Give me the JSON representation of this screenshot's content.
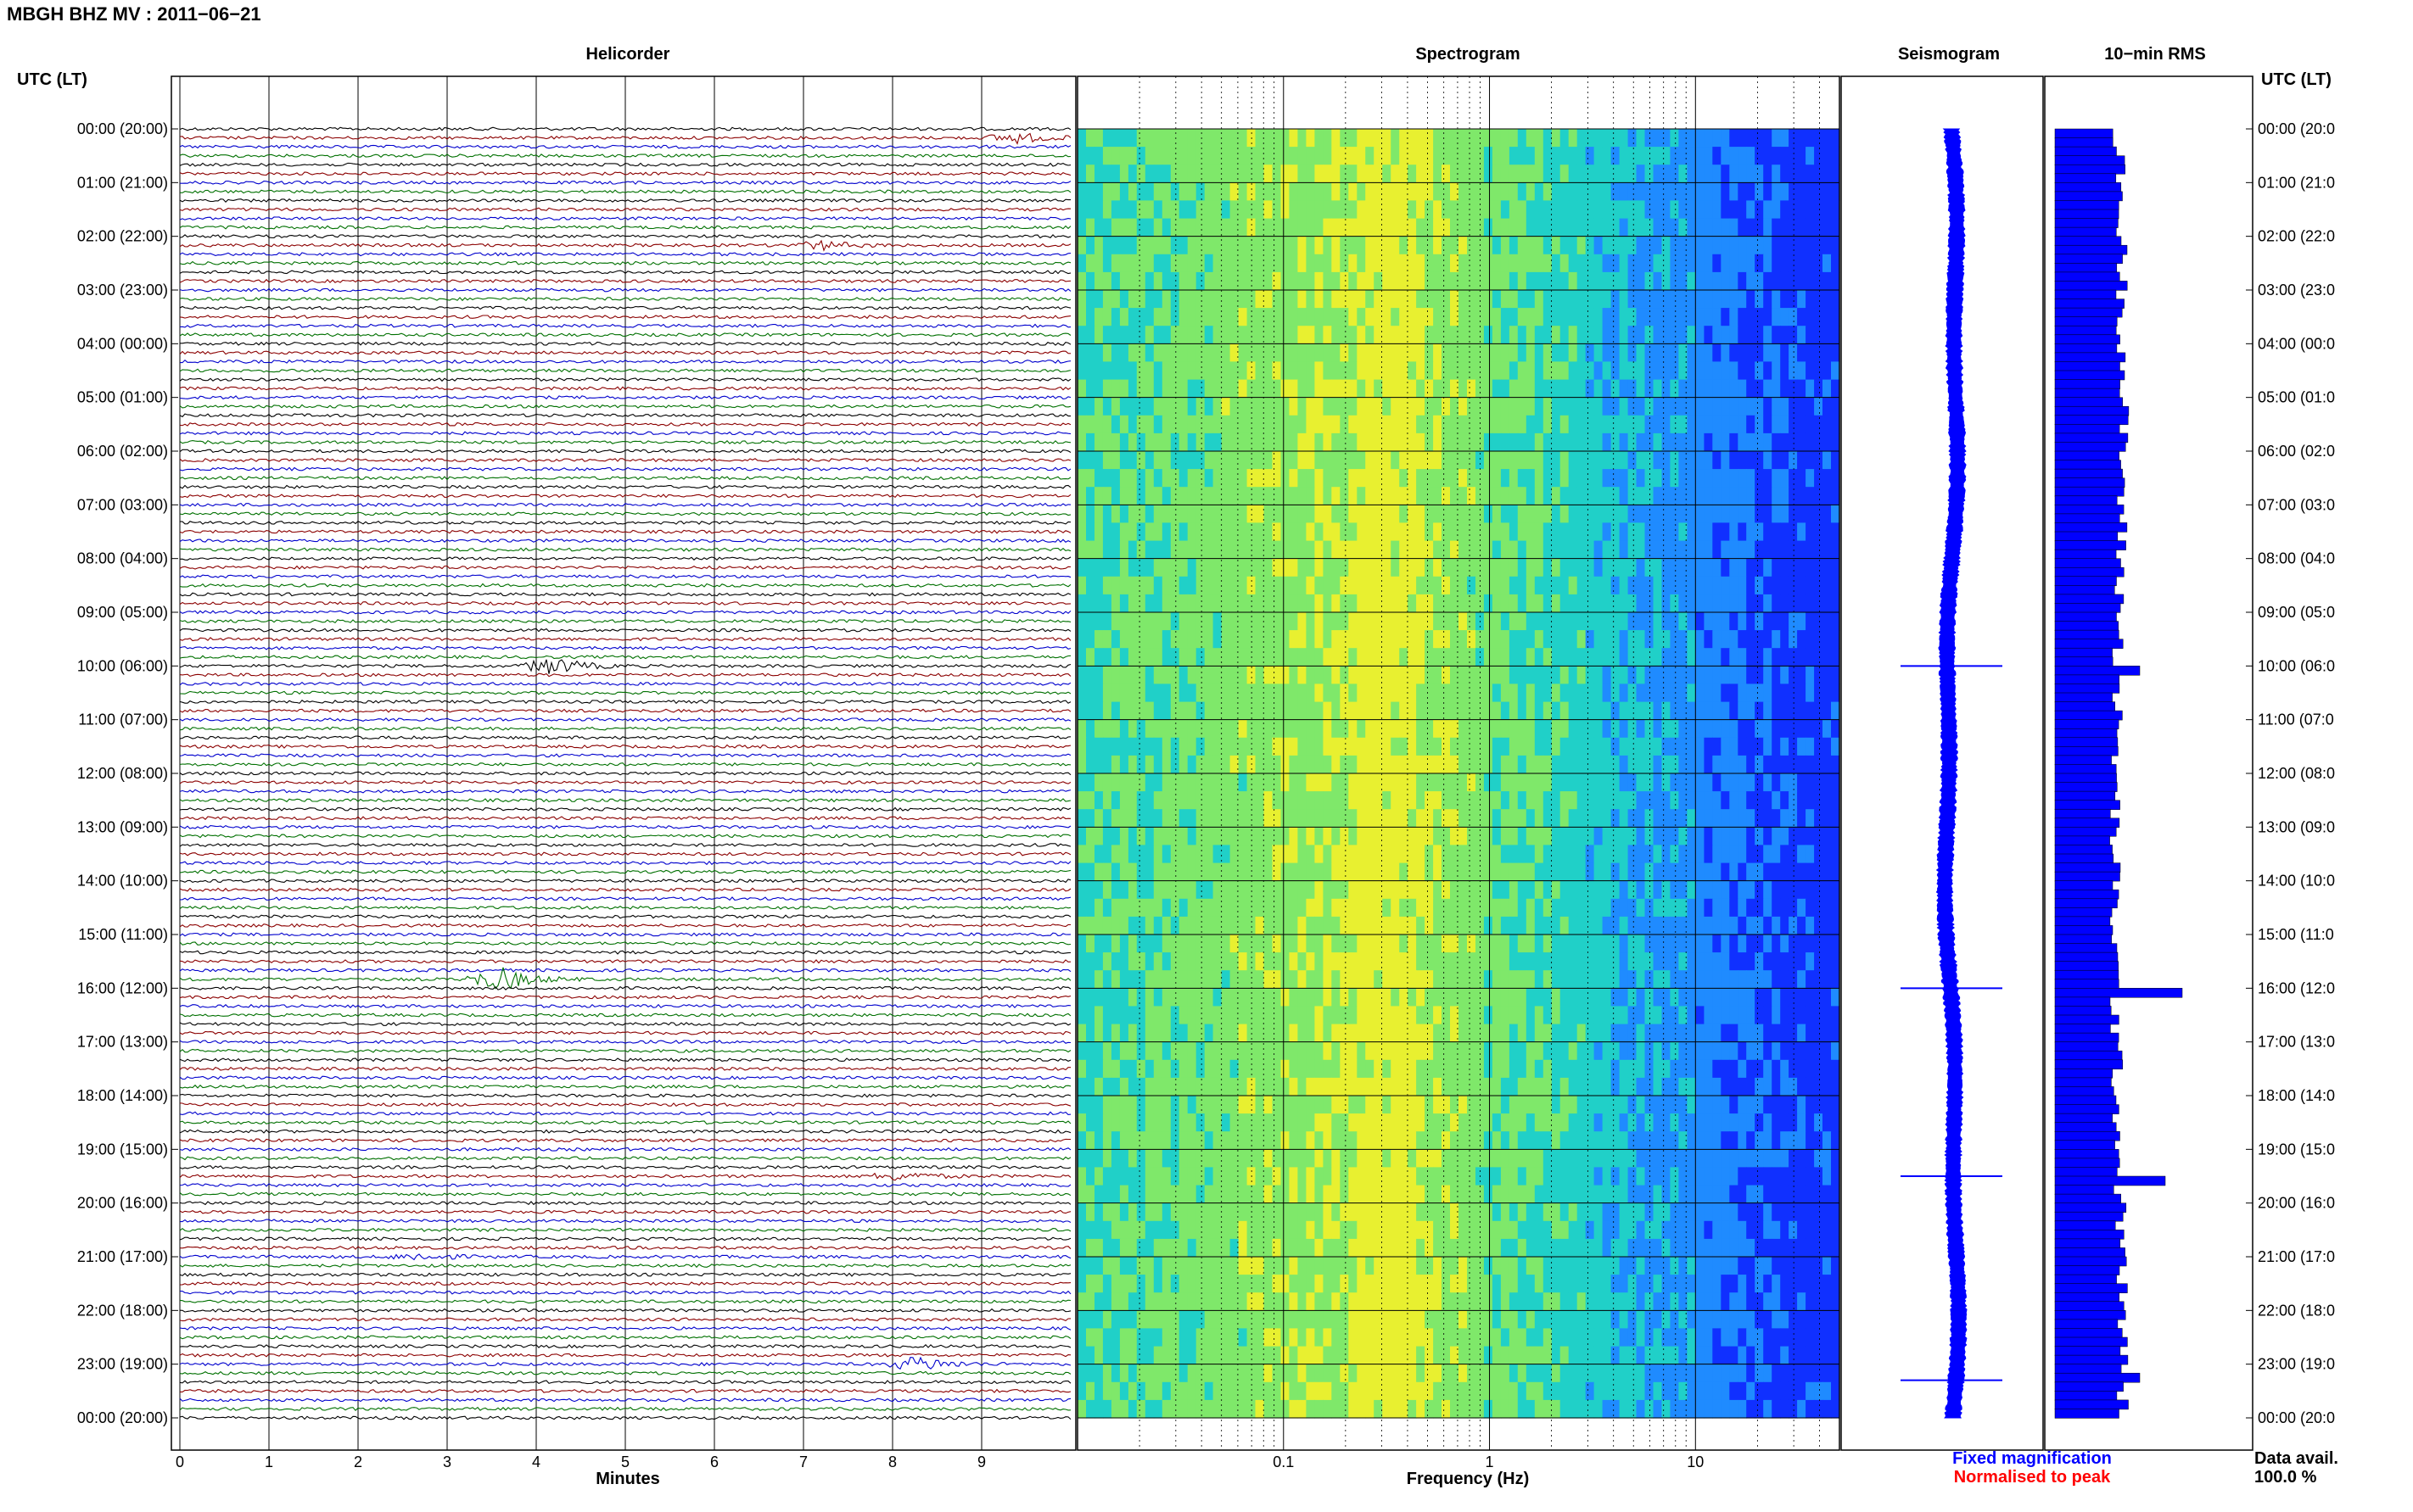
{
  "header": {
    "title": "MBGH BHZ MV : 2011−06−21"
  },
  "panels": {
    "helicorder": "Helicorder",
    "spectrogram": "Spectrogram",
    "seismogram": "Seismogram",
    "rms": "10−min RMS"
  },
  "left_axis_title": "UTC (LT)",
  "right_axis_title": "UTC (LT)",
  "legend": {
    "fixed": "Fixed magnification",
    "normalised": "Normalised to peak",
    "fixed_color": "#0000ff",
    "normalised_color": "#ff0000"
  },
  "data_avail": {
    "label": "Data avail.",
    "value": "100.0 %"
  },
  "chart_data": [
    {
      "type": "line",
      "title": "Helicorder",
      "xlabel": "Minutes",
      "ylabel": "UTC (LT)",
      "x_ticks": [
        "0",
        "1",
        "2",
        "3",
        "4",
        "5",
        "6",
        "7",
        "8",
        "9"
      ],
      "xlim": [
        0,
        10
      ],
      "y_ticks": [
        "00:00 (20:00)",
        "01:00 (21:00)",
        "02:00 (22:00)",
        "03:00 (23:00)",
        "04:00 (00:00)",
        "05:00 (01:00)",
        "06:00 (02:00)",
        "07:00 (03:00)",
        "08:00 (04:00)",
        "09:00 (05:00)",
        "10:00 (06:00)",
        "11:00 (07:00)",
        "12:00 (08:00)",
        "13:00 (09:00)",
        "14:00 (10:00)",
        "15:00 (11:00)",
        "16:00 (12:00)",
        "17:00 (13:00)",
        "18:00 (14:00)",
        "19:00 (15:00)",
        "20:00 (16:00)",
        "21:00 (17:00)",
        "22:00 (18:00)",
        "23:00 (19:00)",
        "00:00 (20:00)"
      ],
      "right_y_ticks": [
        "00:00 (20:0",
        "01:00 (21:0",
        "02:00 (22:0",
        "03:00 (23:0",
        "04:00 (00:0",
        "05:00 (01:0",
        "06:00 (02:0",
        "07:00 (03:0",
        "08:00 (04:0",
        "09:00 (05:0",
        "10:00 (06:0",
        "11:00 (07:0",
        "12:00 (08:0",
        "13:00 (09:0",
        "14:00 (10:0",
        "15:00 (11:0",
        "16:00 (12:0",
        "17:00 (13:0",
        "18:00 (14:0",
        "19:00 (15:0",
        "20:00 (16:0",
        "21:00 (17:0",
        "22:00 (18:0",
        "23:00 (19:0",
        "00:00 (20:0"
      ],
      "traces_per_hour": 6,
      "trace_color_cycle": [
        "#000000",
        "#8b0000",
        "#0000cd",
        "#007000"
      ],
      "events": [
        {
          "hour": 0,
          "row": 1,
          "minute": 9.3,
          "amp": 6
        },
        {
          "hour": 2,
          "row": 1,
          "minute": 7.1,
          "amp": 5
        },
        {
          "hour": 10,
          "row": 0,
          "minute": 4.1,
          "amp": 10
        },
        {
          "hour": 15,
          "row": 5,
          "minute": 3.5,
          "amp": 14
        },
        {
          "hour": 19,
          "row": 3,
          "minute": 3.3,
          "amp": 6
        },
        {
          "hour": 19,
          "row": 3,
          "minute": 8.0,
          "amp": 5
        },
        {
          "hour": 21,
          "row": 0,
          "minute": 2.6,
          "amp": 4
        },
        {
          "hour": 23,
          "row": 0,
          "minute": 8.2,
          "amp": 9
        }
      ]
    },
    {
      "type": "heatmap",
      "title": "Spectrogram",
      "xlabel": "Frequency (Hz)",
      "x_scale": "log",
      "xlim": [
        0.01,
        50
      ],
      "x_ticks": [
        "0.1",
        "1",
        "10"
      ],
      "colormap": [
        "#1030ff",
        "#1f8bff",
        "#20d0c8",
        "#7fe86a",
        "#e8f030"
      ],
      "peak_band_hz": [
        0.2,
        0.5
      ]
    },
    {
      "type": "line",
      "title": "Seismogram",
      "spikes_at_hour": [
        10.0,
        16.0,
        19.5,
        23.3
      ]
    },
    {
      "type": "bar",
      "title": "10−min RMS",
      "orientation": "horizontal",
      "hours": 24,
      "bins_per_hour": 6,
      "baseline_level": 0.75,
      "peaks": [
        {
          "hour": 10.0,
          "value": 1.0
        },
        {
          "hour": 16.0,
          "value": 1.5
        },
        {
          "hour": 19.5,
          "value": 1.3
        },
        {
          "hour": 23.2,
          "value": 1.0
        }
      ]
    }
  ]
}
